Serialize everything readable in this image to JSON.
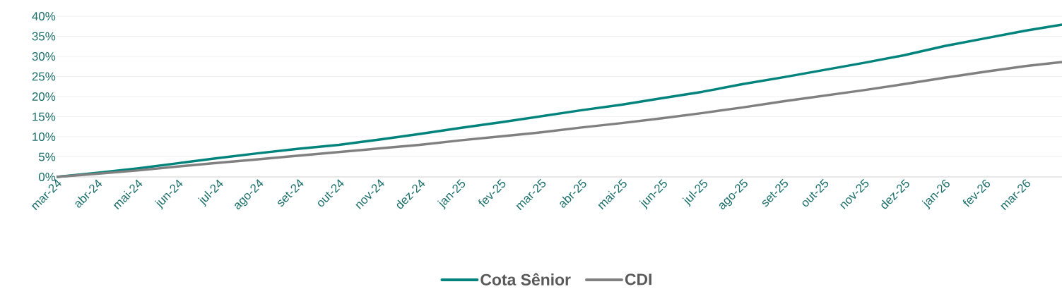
{
  "chart_data": {
    "type": "line",
    "x": [
      "2024-03",
      "2024-04",
      "2024-05",
      "2024-06",
      "2024-07",
      "2024-08",
      "2024-09",
      "2024-10",
      "2024-11",
      "2024-12",
      "2025-01",
      "2025-02",
      "2025-03",
      "2025-04",
      "2025-05",
      "2025-06",
      "2025-07",
      "2025-08",
      "2025-09",
      "2025-10",
      "2025-11",
      "2025-12",
      "2026-01",
      "2026-02",
      "2026-03",
      "2026-03-29"
    ],
    "series": [
      {
        "name": "Cota Sênior",
        "color": "#00837c",
        "values": [
          0,
          1.0,
          2.1,
          3.4,
          4.7,
          5.9,
          7.0,
          8.0,
          9.3,
          10.7,
          12.2,
          13.6,
          15.1,
          16.6,
          18.0,
          19.6,
          21.2,
          23.1,
          24.8,
          26.6,
          28.4,
          30.3,
          32.6,
          34.5,
          36.4,
          37.9
        ]
      },
      {
        "name": "CDI",
        "color": "#808080",
        "values": [
          0,
          0.8,
          1.6,
          2.6,
          3.5,
          4.4,
          5.3,
          6.2,
          7.1,
          8.0,
          9.1,
          10.1,
          11.1,
          12.3,
          13.4,
          14.6,
          15.9,
          17.3,
          18.8,
          20.2,
          21.6,
          23.1,
          24.7,
          26.2,
          27.6,
          28.6
        ]
      }
    ],
    "xlim": [
      "2024-03",
      "2026-03-29"
    ],
    "xticks": [
      {
        "value": "2024-03",
        "label": "mar-24"
      },
      {
        "value": "2024-04",
        "label": "abr-24"
      },
      {
        "value": "2024-05",
        "label": "mai-24"
      },
      {
        "value": "2024-06",
        "label": "jun-24"
      },
      {
        "value": "2024-07",
        "label": "jul-24"
      },
      {
        "value": "2024-08",
        "label": "ago-24"
      },
      {
        "value": "2024-09",
        "label": "set-24"
      },
      {
        "value": "2024-10",
        "label": "out-24"
      },
      {
        "value": "2024-11",
        "label": "nov-24"
      },
      {
        "value": "2024-12",
        "label": "dez-24"
      },
      {
        "value": "2025-01",
        "label": "jan-25"
      },
      {
        "value": "2025-02",
        "label": "fev-25"
      },
      {
        "value": "2025-03",
        "label": "mar-25"
      },
      {
        "value": "2025-04",
        "label": "abr-25"
      },
      {
        "value": "2025-05",
        "label": "mai-25"
      },
      {
        "value": "2025-06",
        "label": "jun-25"
      },
      {
        "value": "2025-07",
        "label": "jul-25"
      },
      {
        "value": "2025-08",
        "label": "ago-25"
      },
      {
        "value": "2025-09",
        "label": "set-25"
      },
      {
        "value": "2025-10",
        "label": "out-25"
      },
      {
        "value": "2025-11",
        "label": "nov-25"
      },
      {
        "value": "2025-12",
        "label": "dez-25"
      },
      {
        "value": "2026-01",
        "label": "jan-26"
      },
      {
        "value": "2026-02",
        "label": "fev-26"
      },
      {
        "value": "2026-03",
        "label": "mar-26"
      }
    ],
    "ylim": [
      0,
      40
    ],
    "yticks": [
      {
        "value": 0,
        "label": "0%"
      },
      {
        "value": 5,
        "label": "5%"
      },
      {
        "value": 10,
        "label": "10%"
      },
      {
        "value": 15,
        "label": "15%"
      },
      {
        "value": 20,
        "label": "20%"
      },
      {
        "value": 25,
        "label": "25%"
      },
      {
        "value": 30,
        "label": "30%"
      },
      {
        "value": 35,
        "label": "35%"
      },
      {
        "value": 40,
        "label": "40%"
      }
    ],
    "grid": "y",
    "legend": "bottom",
    "marker": "none",
    "line_style": "solid"
  }
}
